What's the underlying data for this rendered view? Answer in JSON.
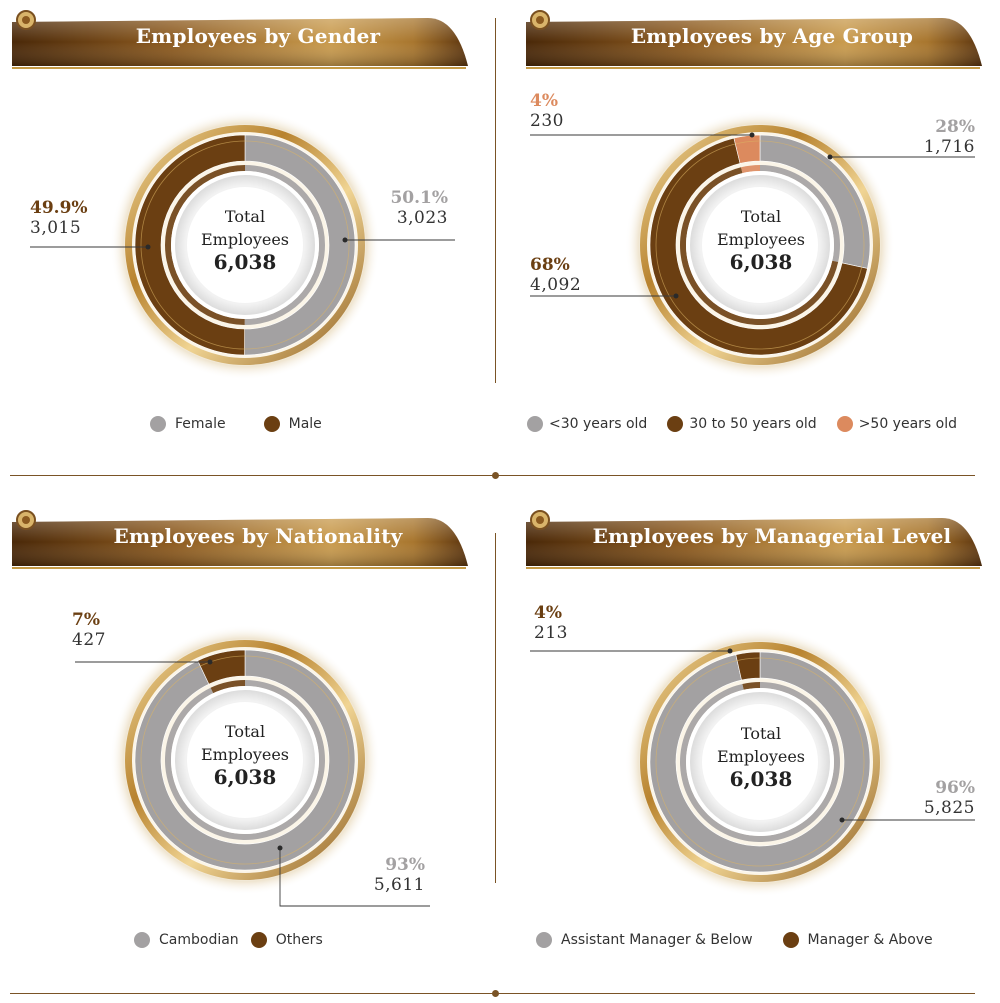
{
  "total_label_line1": "Total",
  "total_label_line2": "Employees",
  "colors": {
    "grey": "#a3a1a2",
    "brown": "#6b3f12",
    "orange": "#dc8a5e",
    "gold": "#c59a45"
  },
  "chart_data": [
    {
      "type": "pie",
      "title": "Employees by Gender",
      "total": "6,038",
      "series": [
        {
          "name": "Female",
          "value": 3023,
          "value_label": "3,023",
          "percent_label": "50.1%",
          "color": "#a3a1a2"
        },
        {
          "name": "Male",
          "value": 3015,
          "value_label": "3,015",
          "percent_label": "49.9%",
          "color": "#6b3f12"
        }
      ],
      "legend": [
        "Female",
        "Male"
      ]
    },
    {
      "type": "pie",
      "title": "Employees by Age Group",
      "total": "6,038",
      "series": [
        {
          "name": "<30 years old",
          "value": 1716,
          "value_label": "1,716",
          "percent_label": "28%",
          "color": "#a3a1a2"
        },
        {
          "name": "30 to 50 years old",
          "value": 4092,
          "value_label": "4,092",
          "percent_label": "68%",
          "color": "#6b3f12"
        },
        {
          "name": ">50 years old",
          "value": 230,
          "value_label": "230",
          "percent_label": "4%",
          "color": "#dc8a5e"
        }
      ],
      "legend": [
        "<30 years old",
        "30 to 50 years old",
        ">50 years old"
      ]
    },
    {
      "type": "pie",
      "title": "Employees by Nationality",
      "total": "6,038",
      "series": [
        {
          "name": "Cambodian",
          "value": 5611,
          "value_label": "5,611",
          "percent_label": "93%",
          "color": "#a3a1a2"
        },
        {
          "name": "Others",
          "value": 427,
          "value_label": "427",
          "percent_label": "7%",
          "color": "#6b3f12"
        }
      ],
      "legend": [
        "Cambodian",
        "Others"
      ]
    },
    {
      "type": "pie",
      "title": "Employees by Managerial Level",
      "total": "6,038",
      "series": [
        {
          "name": "Assistant Manager & Below",
          "value": 5825,
          "value_label": "5,825",
          "percent_label": "96%",
          "color": "#a3a1a2"
        },
        {
          "name": "Manager & Above",
          "value": 213,
          "value_label": "213",
          "percent_label": "4%",
          "color": "#6b3f12"
        }
      ],
      "legend": [
        "Assistant Manager & Below",
        "Manager & Above"
      ]
    }
  ]
}
